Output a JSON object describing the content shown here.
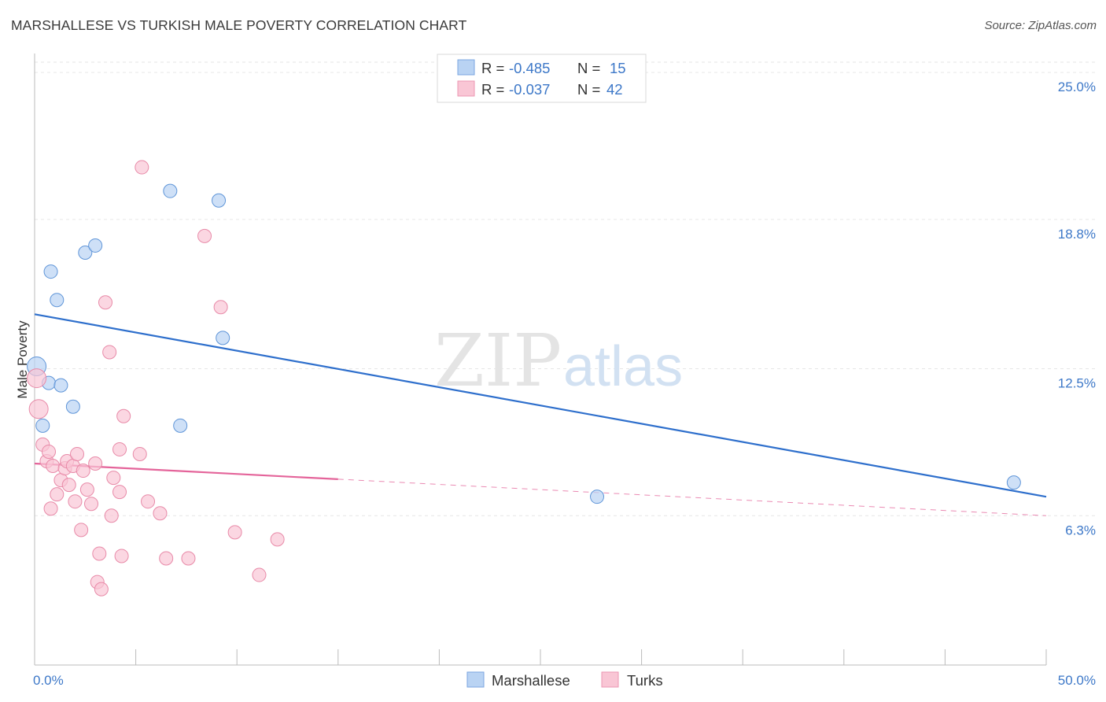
{
  "header": {
    "title": "MARSHALLESE VS TURKISH MALE POVERTY CORRELATION CHART",
    "source": "Source: ZipAtlas.com"
  },
  "watermark": {
    "zip": "ZIP",
    "atlas": "atlas"
  },
  "legend": {
    "r_label": "R =",
    "n_label": "N =",
    "rows": [
      {
        "series": "Marshallese",
        "r": "-0.485",
        "n": "15",
        "color": "#a9c8ef"
      },
      {
        "series": "Turks",
        "r": "-0.037",
        "n": "42",
        "color": "#f7b9cc"
      }
    ]
  },
  "colors": {
    "marshallese_fill": "#b9d3f3",
    "marshallese_stroke": "#5f95d8",
    "marshallese_line": "#2e6fcc",
    "turks_fill": "#f9c6d5",
    "turks_stroke": "#e88aa8",
    "turks_line": "#e4649a",
    "tick_label": "#3d78c8",
    "grid": "#e6e6e6"
  },
  "chart_data": {
    "type": "scatter",
    "xlabel": "",
    "ylabel": "Male Poverty",
    "xlim": [
      0,
      50
    ],
    "ylim": [
      0,
      25.8
    ],
    "x_tick_labels": [
      {
        "value": 0,
        "label": "0.0%"
      },
      {
        "value": 50,
        "label": "50.0%"
      }
    ],
    "x_minor_ticks": [
      0,
      5,
      10,
      15,
      20,
      25,
      30,
      35,
      40,
      45,
      50
    ],
    "y_ticks": [
      {
        "value": 6.3,
        "label": "6.3%"
      },
      {
        "value": 12.5,
        "label": "12.5%"
      },
      {
        "value": 18.8,
        "label": "18.8%"
      },
      {
        "value": 25.0,
        "label": "25.0%"
      }
    ],
    "grid": true,
    "legend_position": "top-center",
    "series": [
      {
        "name": "Marshallese",
        "points": [
          [
            0.1,
            12.6
          ],
          [
            0.4,
            10.1
          ],
          [
            0.7,
            11.9
          ],
          [
            0.8,
            16.6
          ],
          [
            1.1,
            15.4
          ],
          [
            1.3,
            11.8
          ],
          [
            1.9,
            10.9
          ],
          [
            2.5,
            17.4
          ],
          [
            3.0,
            17.7
          ],
          [
            6.7,
            20.0
          ],
          [
            7.2,
            10.1
          ],
          [
            9.1,
            19.6
          ],
          [
            9.3,
            13.8
          ],
          [
            27.8,
            7.1
          ],
          [
            48.4,
            7.7
          ]
        ],
        "trend": {
          "x": [
            0,
            50
          ],
          "y": [
            14.8,
            7.1
          ],
          "dashed_from": null
        }
      },
      {
        "name": "Turks",
        "points": [
          [
            0.1,
            12.1
          ],
          [
            0.2,
            10.8
          ],
          [
            0.4,
            9.3
          ],
          [
            0.6,
            8.6
          ],
          [
            0.7,
            9.0
          ],
          [
            0.8,
            6.6
          ],
          [
            0.9,
            8.4
          ],
          [
            1.1,
            7.2
          ],
          [
            1.3,
            7.8
          ],
          [
            1.5,
            8.3
          ],
          [
            1.6,
            8.6
          ],
          [
            1.7,
            7.6
          ],
          [
            1.9,
            8.4
          ],
          [
            2.0,
            6.9
          ],
          [
            2.1,
            8.9
          ],
          [
            2.3,
            5.7
          ],
          [
            2.4,
            8.2
          ],
          [
            2.6,
            7.4
          ],
          [
            2.8,
            6.8
          ],
          [
            3.0,
            8.5
          ],
          [
            3.1,
            3.5
          ],
          [
            3.2,
            4.7
          ],
          [
            3.3,
            3.2
          ],
          [
            3.5,
            15.3
          ],
          [
            3.7,
            13.2
          ],
          [
            3.8,
            6.3
          ],
          [
            3.9,
            7.9
          ],
          [
            4.2,
            7.3
          ],
          [
            4.2,
            9.1
          ],
          [
            4.3,
            4.6
          ],
          [
            4.4,
            10.5
          ],
          [
            5.2,
            8.9
          ],
          [
            5.3,
            21.0
          ],
          [
            5.6,
            6.9
          ],
          [
            6.2,
            6.4
          ],
          [
            6.5,
            4.5
          ],
          [
            7.6,
            4.5
          ],
          [
            8.4,
            18.1
          ],
          [
            9.2,
            15.1
          ],
          [
            9.9,
            5.6
          ],
          [
            11.1,
            3.8
          ],
          [
            12.0,
            5.3
          ]
        ],
        "trend": {
          "x": [
            0,
            50
          ],
          "y": [
            8.5,
            6.3
          ],
          "dashed_from": 15
        }
      }
    ]
  },
  "bottom_legend": [
    {
      "label": "Marshallese"
    },
    {
      "label": "Turks"
    }
  ]
}
